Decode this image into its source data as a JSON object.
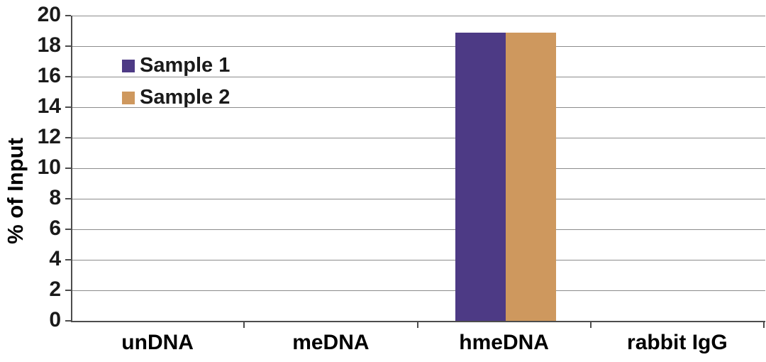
{
  "chart_data": {
    "type": "bar",
    "title": "",
    "ylabel": "% of Input",
    "xlabel": "",
    "categories": [
      "unDNA",
      "meDNA",
      "hmeDNA",
      "rabbit IgG"
    ],
    "series": [
      {
        "name": "Sample 1",
        "color": "#4D3A85",
        "values": [
          0,
          0,
          18.9,
          0
        ]
      },
      {
        "name": "Sample 2",
        "color": "#CE985E",
        "values": [
          0,
          0,
          18.9,
          0
        ]
      }
    ],
    "ylim": [
      0,
      20
    ],
    "yticks": [
      0,
      2,
      4,
      6,
      8,
      10,
      12,
      14,
      16,
      18,
      20
    ],
    "grid": "horizontal",
    "gridline_color": "#8c8c8c",
    "axis_color": "#4d4d4d",
    "legend_position": "upper-left-inside"
  }
}
